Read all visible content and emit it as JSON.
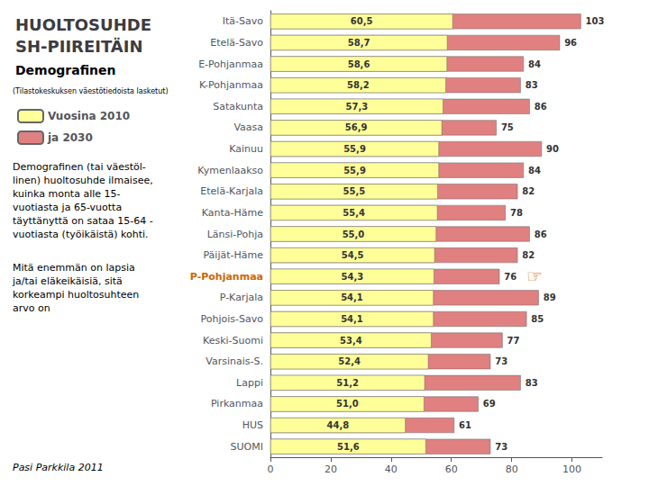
{
  "chart_data": {
    "type": "bar",
    "orientation": "horizontal",
    "stacked": false,
    "title": "HUOLTOSUHDE\nSH-PIIREITÄIN",
    "subtitle": "Demografinen",
    "categories": [
      "Itä-Savo",
      "Etelä-Savo",
      "E-Pohjanmaa",
      "K-Pohjanmaa",
      "Satakunta",
      "Vaasa",
      "Kainuu",
      "Kymenlaakso",
      "Etelä-Karjala",
      "Kanta-Häme",
      "Länsi-Pohja",
      "Päijät-Häme",
      "P-Pohjanmaa",
      "P-Karjala",
      "Pohjois-Savo",
      "Keski-Suomi",
      "Varsinais-S.",
      "Lappi",
      "Pirkanmaa",
      "HUS",
      "SUOMI"
    ],
    "series": [
      {
        "name": "Vuosina 2010",
        "color": "#FFFF99",
        "values": [
          60.5,
          58.7,
          58.6,
          58.2,
          57.3,
          56.9,
          55.9,
          55.9,
          55.5,
          55.4,
          55.0,
          54.5,
          54.3,
          54.1,
          54.1,
          53.4,
          52.4,
          51.2,
          51.0,
          44.8,
          51.6
        ],
        "value_labels": [
          "60,5",
          "58,7",
          "58,6",
          "58,2",
          "57,3",
          "56,9",
          "55,9",
          "55,9",
          "55,5",
          "55,4",
          "55,0",
          "54,5",
          "54,3",
          "54,1",
          "54,1",
          "53,4",
          "52,4",
          "51,2",
          "51,0",
          "44,8",
          "51,6"
        ]
      },
      {
        "name": "ja 2030",
        "color": "#E08080",
        "values": [
          103,
          96,
          84,
          83,
          86,
          75,
          90,
          84,
          82,
          78,
          86,
          82,
          76,
          89,
          85,
          77,
          73,
          83,
          69,
          61,
          73
        ]
      }
    ],
    "data_labels": true,
    "xlim": [
      0,
      110
    ],
    "xticks": [
      0,
      20,
      40,
      60,
      80,
      100
    ],
    "grid": false,
    "legend": "upper left",
    "annotations": [
      {
        "text": "(Tilastokeskuksen väestötiedoista lasketut)"
      },
      {
        "text": "Demografinen (tai väestöl-\nlinen) huoltosuhde ilmaisee,\nkuinka monta alle 15-\nvuotiasta ja 65-vuotta\ntäyttänyttä on sataa 15-64 -\nvuotiasta (työikäistä) kohti."
      },
      {
        "text": "Mitä enemmän on lapsia\nja/tai eläkeikäisiä, sitä\nkorkeampi huoltosuhteen\narvo on"
      },
      {
        "text": "Pasi Parkkila 2011"
      },
      {
        "text": "☞",
        "category": "P-Pohjanmaa",
        "color": "#CC6600"
      }
    ]
  }
}
